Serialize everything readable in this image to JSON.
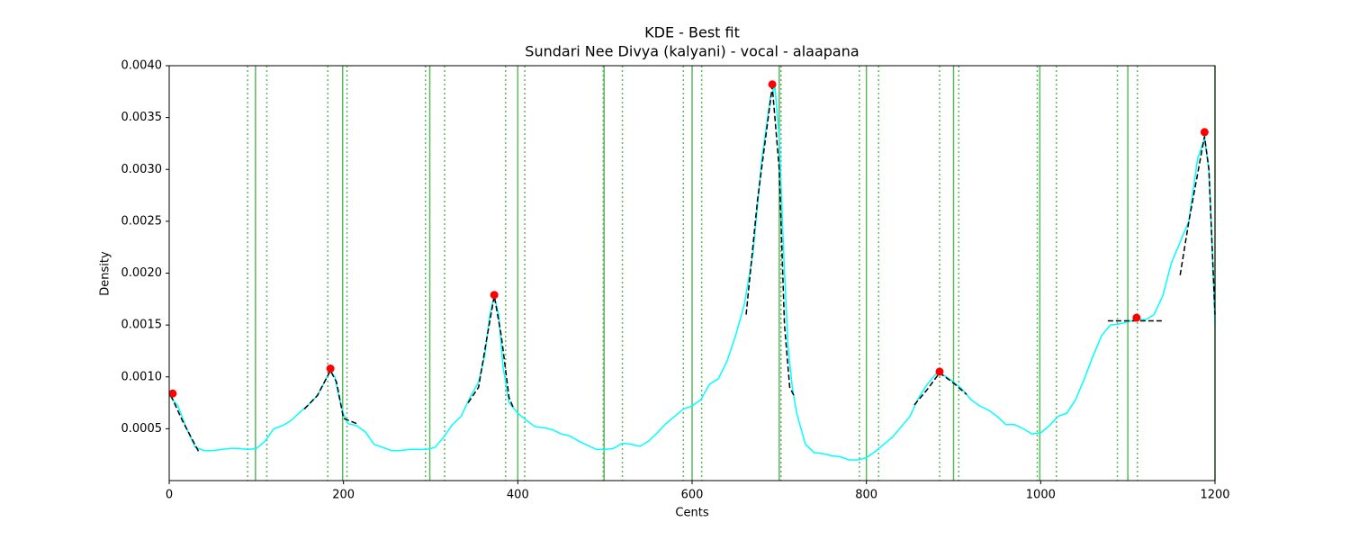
{
  "chart_data": {
    "type": "line",
    "title": "KDE - Best fit",
    "subtitle": "Sundari Nee Divya (kalyani) - vocal - alaapana",
    "x_label": "Cents",
    "y_label": "Density",
    "xlim": [
      0,
      1200
    ],
    "ylim": [
      0,
      0.004
    ],
    "xticks": [
      0,
      200,
      400,
      600,
      800,
      1000,
      1200
    ],
    "yticks": [
      0.0005,
      {
        "value": 0.001,
        "label": "0.0010"
      },
      0.0015,
      {
        "value": 0.002,
        "label": "0.0020"
      },
      0.0025,
      {
        "value": 0.003,
        "label": "0.0030"
      },
      0.0035,
      {
        "value": 0.004,
        "label": "0.0040"
      }
    ],
    "series": [
      {
        "color": "#00ffff",
        "x": [
          0,
          10,
          20,
          30,
          40,
          50,
          60,
          70,
          80,
          90,
          100,
          110,
          120,
          130,
          140,
          150,
          160,
          170,
          180,
          185,
          190,
          195,
          200,
          205,
          215,
          225,
          235,
          245,
          255,
          265,
          275,
          285,
          295,
          305,
          315,
          325,
          335,
          345,
          355,
          362,
          368,
          373,
          378,
          383,
          390,
          400,
          410,
          420,
          430,
          440,
          450,
          460,
          470,
          480,
          490,
          500,
          510,
          520,
          530,
          540,
          550,
          560,
          570,
          580,
          590,
          600,
          610,
          620,
          630,
          640,
          650,
          660,
          670,
          680,
          690,
          695,
          700,
          705,
          710,
          715,
          720,
          730,
          740,
          750,
          760,
          770,
          780,
          790,
          800,
          810,
          820,
          830,
          840,
          850,
          860,
          870,
          880,
          890,
          900,
          910,
          920,
          930,
          940,
          950,
          960,
          970,
          980,
          990,
          1000,
          1010,
          1020,
          1030,
          1040,
          1050,
          1060,
          1070,
          1080,
          1090,
          1100,
          1110,
          1120,
          1130,
          1140,
          1150,
          1160,
          1170,
          1180,
          1188,
          1193,
          1197,
          1200
        ],
        "values": [
          0.00082,
          0.00072,
          0.0005,
          0.00032,
          0.00029,
          0.00029,
          0.0003,
          0.00031,
          0.00031,
          0.0003,
          0.00031,
          0.00038,
          0.0005,
          0.00053,
          0.00058,
          0.00066,
          0.00073,
          0.00082,
          0.00098,
          0.00106,
          0.001,
          0.0008,
          0.00064,
          0.00055,
          0.00053,
          0.00047,
          0.00035,
          0.00032,
          0.00029,
          0.00029,
          0.0003,
          0.0003,
          0.0003,
          0.00032,
          0.00042,
          0.00054,
          0.00062,
          0.0008,
          0.00095,
          0.0012,
          0.0016,
          0.00178,
          0.0016,
          0.0011,
          0.00075,
          0.00065,
          0.00058,
          0.00052,
          0.00051,
          0.00049,
          0.00045,
          0.00043,
          0.00038,
          0.00034,
          0.0003,
          0.0003,
          0.00031,
          0.00036,
          0.00035,
          0.00033,
          0.00038,
          0.00046,
          0.00055,
          0.00062,
          0.00069,
          0.00072,
          0.00078,
          0.00093,
          0.00098,
          0.00115,
          0.0014,
          0.0017,
          0.0022,
          0.0031,
          0.0037,
          0.0038,
          0.0033,
          0.0022,
          0.0013,
          0.0009,
          0.00065,
          0.00035,
          0.00027,
          0.00026,
          0.00024,
          0.00023,
          0.0002,
          0.0002,
          0.00022,
          0.00028,
          0.00035,
          0.00042,
          0.00052,
          0.00062,
          0.0008,
          0.00093,
          0.00103,
          0.00101,
          0.00095,
          0.00088,
          0.00078,
          0.00072,
          0.00068,
          0.00062,
          0.00054,
          0.00054,
          0.0005,
          0.00045,
          0.00046,
          0.00053,
          0.00062,
          0.00065,
          0.00078,
          0.00098,
          0.0012,
          0.0014,
          0.0015,
          0.00151,
          0.00153,
          0.00156,
          0.00155,
          0.0016,
          0.00178,
          0.0021,
          0.0023,
          0.0025,
          0.0031,
          0.0033,
          0.003,
          0.0022,
          0.0015
        ]
      }
    ],
    "peaks": {
      "color": "#ff0000",
      "x": [
        4,
        185,
        373,
        692,
        884,
        1110,
        1188
      ],
      "values": [
        0.00084,
        0.00108,
        0.00179,
        0.00382,
        0.00105,
        0.00157,
        0.00336
      ]
    },
    "fits": {
      "color": "#000000",
      "lines": [
        {
          "x": [
            2,
            15,
            35
          ],
          "values": [
            0.00082,
            0.00058,
            0.00026
          ]
        },
        {
          "x": [
            155,
            170,
            185,
            192,
            200,
            215
          ],
          "values": [
            0.00069,
            0.00082,
            0.00106,
            0.00095,
            0.0006,
            0.00055
          ]
        },
        {
          "x": [
            343,
            355,
            365,
            373,
            381,
            390,
            395
          ],
          "values": [
            0.00075,
            0.0009,
            0.0014,
            0.00178,
            0.0014,
            0.0008,
            0.0007
          ]
        },
        {
          "x": [
            662,
            675,
            692,
            700,
            706,
            712,
            718
          ],
          "values": [
            0.0016,
            0.0027,
            0.0038,
            0.003,
            0.0015,
            0.0009,
            0.0008
          ]
        },
        {
          "x": [
            855,
            870,
            884,
            900,
            915
          ],
          "values": [
            0.00073,
            0.00088,
            0.00104,
            0.00094,
            0.00083
          ]
        },
        {
          "x": [
            1077,
            1140
          ],
          "values": [
            0.00154,
            0.00154
          ]
        },
        {
          "x": [
            1160,
            1170,
            1188,
            1193,
            1197,
            1200
          ],
          "values": [
            0.00198,
            0.0025,
            0.00332,
            0.003,
            0.0022,
            0.0016
          ]
        }
      ]
    },
    "reference_lines": {
      "color": "#5cb85c",
      "solid": [
        99,
        199,
        299,
        400,
        499,
        600,
        700,
        800,
        900,
        999,
        1100,
        1200
      ],
      "dotted": [
        90,
        112,
        182,
        204,
        294,
        316,
        386,
        408,
        498,
        520,
        590,
        611,
        702,
        792,
        814,
        884,
        906,
        996,
        1018,
        1088,
        1111
      ]
    }
  }
}
